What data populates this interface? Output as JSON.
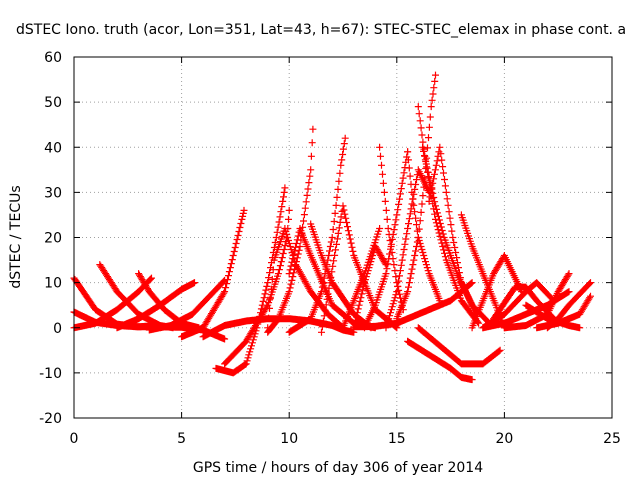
{
  "chart_data": {
    "type": "scatter",
    "title": "dSTEC Iono. truth (acor, Lon=351, Lat=43, h=67): STEC-STEC_elemax in phase cont. a",
    "xlabel": "GPS time / hours of day 306 of year 2014",
    "ylabel": "dSTEC  / TECUs",
    "xlim": [
      0,
      25
    ],
    "ylim": [
      -20,
      60
    ],
    "xticks": [
      0,
      5,
      10,
      15,
      20,
      25
    ],
    "yticks": [
      -20,
      -10,
      0,
      10,
      20,
      30,
      40,
      50,
      60
    ],
    "grid": true,
    "marker": "plus",
    "color": "#ff0000",
    "series": [
      {
        "x": [
          0.0,
          1.0,
          2.0,
          3.0,
          3.8
        ],
        "y": [
          11,
          4,
          0.8,
          0.2,
          0.5
        ]
      },
      {
        "x": [
          0.0,
          1.0,
          2.0,
          3.0,
          4.0,
          5.0,
          6.0,
          7.0
        ],
        "y": [
          3.5,
          1.2,
          0.5,
          0.2,
          0.2,
          0.1,
          -0.5,
          -2.5
        ]
      },
      {
        "x": [
          1.2,
          2.0,
          3.0,
          4.0,
          4.6
        ],
        "y": [
          14,
          8,
          3,
          0.5,
          0
        ]
      },
      {
        "x": [
          3.0,
          3.5,
          4.2,
          5.0,
          5.8
        ],
        "y": [
          12,
          8,
          4,
          1,
          0
        ]
      },
      {
        "x": [
          0.0,
          1.0,
          2.0,
          3.0,
          3.6
        ],
        "y": [
          0,
          1,
          4,
          8,
          11
        ]
      },
      {
        "x": [
          2.0,
          3.0,
          4.0,
          5.0,
          5.6
        ],
        "y": [
          0,
          2,
          5,
          8.5,
          10
        ]
      },
      {
        "x": [
          3.5,
          4.5,
          5.5,
          6.5,
          7.0
        ],
        "y": [
          -0.5,
          0.5,
          3,
          8,
          10.5
        ]
      },
      {
        "x": [
          5.0,
          6.0,
          7.0,
          7.4,
          7.8,
          7.9
        ],
        "y": [
          -2,
          0,
          8,
          16,
          24,
          26
        ]
      },
      {
        "x": [
          6.6,
          7.4,
          8.0,
          8.5,
          9.0,
          9.4,
          9.7,
          9.8
        ],
        "y": [
          -9,
          -10,
          -8,
          0,
          10,
          20,
          28,
          31
        ]
      },
      {
        "x": [
          7.0,
          8.0,
          9.0,
          9.5,
          9.9,
          10.0
        ],
        "y": [
          -8,
          -3,
          5,
          12,
          20,
          26
        ]
      },
      {
        "x": [
          9.0,
          9.5,
          10.0,
          10.5,
          11.0,
          11.1
        ],
        "y": [
          -1,
          2,
          8,
          18,
          35,
          44
        ]
      },
      {
        "x": [
          6.0,
          7.0,
          8.0,
          9.0,
          10.0,
          11.0,
          12.0,
          12.5,
          13.0
        ],
        "y": [
          -2,
          0.5,
          1.5,
          2,
          2,
          1.5,
          0.5,
          -0.5,
          -1
        ]
      },
      {
        "x": [
          10.0,
          11.0,
          11.5,
          12.0,
          12.4,
          12.6
        ],
        "y": [
          -1,
          2,
          8,
          20,
          36,
          42
        ]
      },
      {
        "x": [
          9.0,
          9.3,
          9.8,
          10.3,
          11.0,
          11.8,
          12.5
        ],
        "y": [
          0,
          15,
          22,
          14,
          8,
          3,
          0
        ]
      },
      {
        "x": [
          10.0,
          10.5,
          11.0,
          12.0,
          13.0,
          14.0
        ],
        "y": [
          12,
          22,
          16,
          5,
          1,
          0
        ]
      },
      {
        "x": [
          11.0,
          11.5,
          12.0,
          13.0,
          13.8
        ],
        "y": [
          23,
          16,
          10,
          3,
          0
        ]
      },
      {
        "x": [
          11.5,
          12.5,
          13.0,
          14.0,
          15.0
        ],
        "y": [
          -1,
          27,
          16,
          4,
          0
        ]
      },
      {
        "x": [
          12.5,
          13.0,
          13.5,
          14.2
        ],
        "y": [
          0,
          6,
          12,
          22
        ]
      },
      {
        "x": [
          13.0,
          13.5,
          14.0,
          14.5
        ],
        "y": [
          0,
          10,
          18,
          14
        ]
      },
      {
        "x": [
          14.2,
          14.6,
          15.0,
          15.3
        ],
        "y": [
          40,
          22,
          10,
          4
        ]
      },
      {
        "x": [
          13.5,
          14.0,
          14.5,
          15.0,
          15.5
        ],
        "y": [
          0,
          5,
          12,
          25,
          39
        ]
      },
      {
        "x": [
          14.5,
          15.0,
          15.5,
          16.0,
          16.5
        ],
        "y": [
          0,
          8,
          22,
          35,
          30
        ]
      },
      {
        "x": [
          15.5,
          15.7,
          16.0,
          16.5,
          17.0
        ],
        "y": [
          39,
          30,
          20,
          12,
          6
        ]
      },
      {
        "x": [
          15.0,
          15.5,
          16.0,
          16.3,
          16.6,
          16.8
        ],
        "y": [
          2,
          8,
          20,
          33,
          49,
          56
        ]
      },
      {
        "x": [
          16.0,
          16.3,
          16.8,
          17.3,
          18.0,
          18.8
        ],
        "y": [
          49,
          38,
          24,
          15,
          6,
          1
        ]
      },
      {
        "x": [
          16.5,
          17.0,
          17.3,
          17.6,
          18.0,
          18.7
        ],
        "y": [
          28,
          40,
          30,
          20,
          10,
          3
        ]
      },
      {
        "x": [
          16.2,
          16.8,
          17.2,
          17.8,
          18.5,
          19.3
        ],
        "y": [
          40,
          27,
          20,
          12,
          5,
          1
        ]
      },
      {
        "x": [
          13.0,
          14.0,
          15.0,
          16.0,
          17.0,
          17.5,
          18.0,
          18.5
        ],
        "y": [
          0.2,
          0.3,
          1,
          3,
          5,
          6,
          8,
          10
        ]
      },
      {
        "x": [
          15.5,
          16.5,
          17.5,
          18.0,
          18.5
        ],
        "y": [
          -3,
          -6,
          -9,
          -11,
          -11.5
        ]
      },
      {
        "x": [
          16.0,
          17.0,
          18.0,
          19.0,
          19.8
        ],
        "y": [
          0,
          -4,
          -8,
          -8,
          -5
        ]
      },
      {
        "x": [
          18.0,
          18.5,
          19.0,
          19.6,
          20.0
        ],
        "y": [
          25,
          18,
          12,
          5,
          0
        ]
      },
      {
        "x": [
          18.5,
          19.0,
          19.5,
          20.0,
          20.8
        ],
        "y": [
          0,
          6,
          12,
          16,
          8
        ]
      },
      {
        "x": [
          19.0,
          20.0,
          21.0,
          21.5,
          22.3
        ],
        "y": [
          0,
          3,
          8,
          10,
          6
        ]
      },
      {
        "x": [
          19.5,
          20.5,
          21.0,
          21.5,
          22.5
        ],
        "y": [
          2,
          9,
          9,
          6,
          1
        ]
      },
      {
        "x": [
          19.0,
          20.0,
          21.0,
          22.0,
          23.0
        ],
        "y": [
          0,
          1,
          3,
          5,
          8
        ]
      },
      {
        "x": [
          20.0,
          21.0,
          22.0,
          22.5,
          23.0
        ],
        "y": [
          0,
          0.5,
          3,
          8,
          12
        ]
      },
      {
        "x": [
          21.0,
          22.0,
          23.0,
          23.5
        ],
        "y": [
          5,
          2,
          0.5,
          0
        ]
      },
      {
        "x": [
          22.0,
          22.5,
          23.0,
          24.0
        ],
        "y": [
          0,
          2,
          5,
          10
        ]
      },
      {
        "x": [
          21.5,
          22.5,
          23.5,
          24.0
        ],
        "y": [
          0,
          1,
          3,
          7
        ]
      }
    ]
  }
}
